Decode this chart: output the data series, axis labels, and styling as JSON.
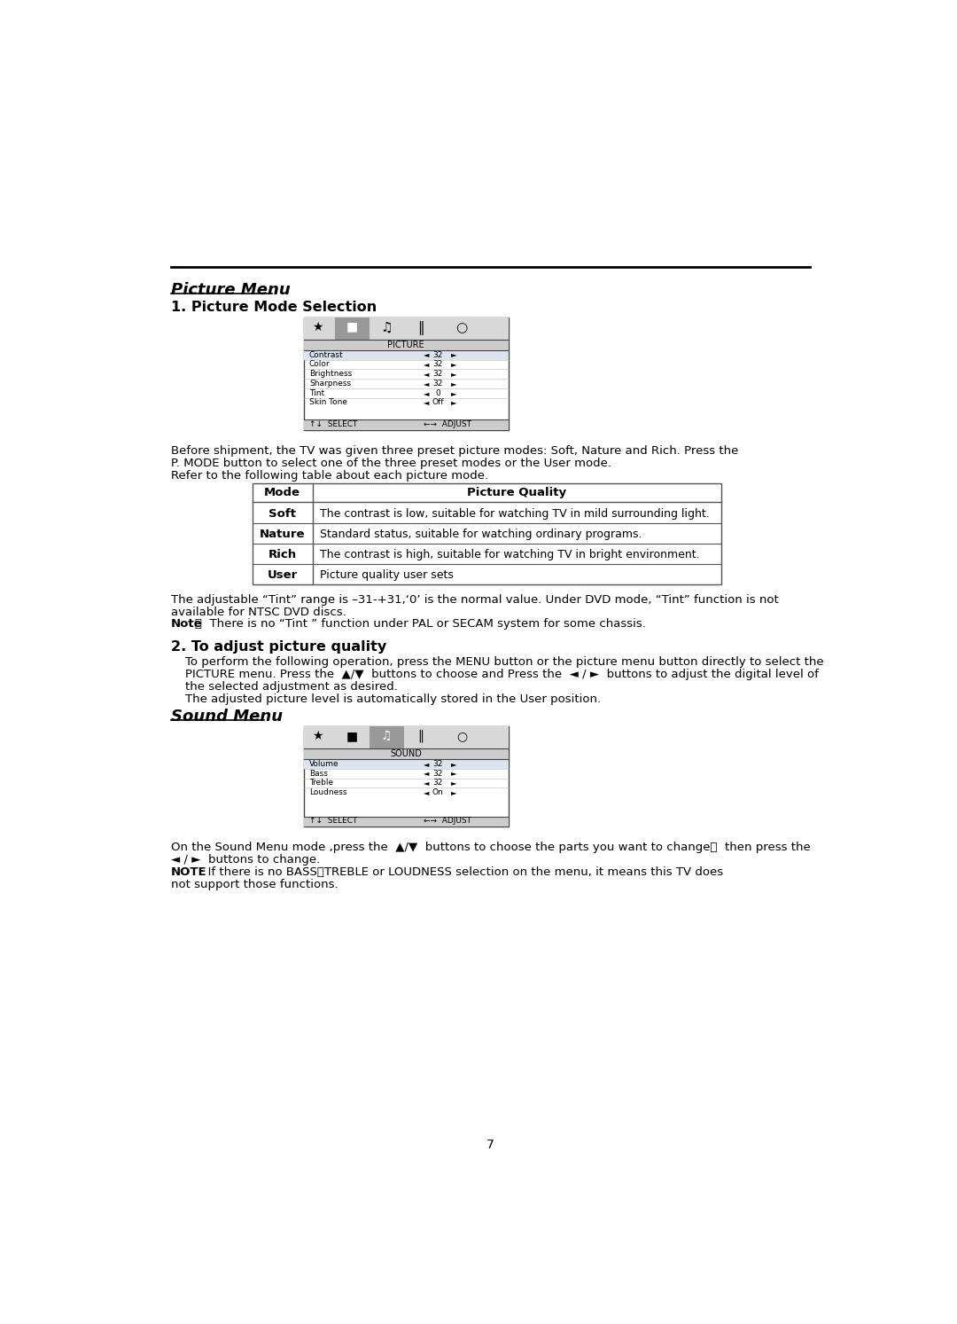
{
  "page_bg": "#ffffff",
  "picture_menu_title": "Picture Menu",
  "section1_title": "1. Picture Mode Selection",
  "picture_menu_items": [
    [
      "Contrast",
      "32"
    ],
    [
      "Color",
      "32"
    ],
    [
      "Brightness",
      "32"
    ],
    [
      "Sharpness",
      "32"
    ],
    [
      "Tint",
      "0"
    ],
    [
      "Skin Tone",
      "Off"
    ]
  ],
  "picture_menu_label": "PICTURE",
  "para1_line1": "Before shipment, the TV was given three preset picture modes: Soft, Nature and Rich. Press the",
  "para1_line2": "P. MODE button to select one of the three preset modes or the User mode.",
  "para1_line3": "Refer to the following table about each picture mode.",
  "table_headers": [
    "Mode",
    "Picture Quality"
  ],
  "table_rows": [
    [
      "Soft",
      "The contrast is low, suitable for watching TV in mild surrounding light."
    ],
    [
      "Nature",
      "Standard status, suitable for watching ordinary programs."
    ],
    [
      "Rich",
      "The contrast is high, suitable for watching TV in bright environment."
    ],
    [
      "User",
      "Picture quality user sets"
    ]
  ],
  "para2_line1": "The adjustable “Tint” range is –31-+31,‘0’ is the normal value. Under DVD mode, “Tint” function is not",
  "para2_line2": "available for NTSC DVD discs.",
  "section2_title": "2. To adjust picture quality",
  "section2_para1": "To perform the following operation, press the MENU button or the picture menu button directly to select the",
  "section2_para2": "PICTURE menu. Press the  ▲/▼  buttons to choose and Press the  ◄ / ►  buttons to adjust the digital level of",
  "section2_para3": "the selected adjustment as desired.",
  "section2_para4": "The adjusted picture level is automatically stored in the User position.",
  "sound_menu_title": "Sound Menu",
  "sound_menu_items": [
    [
      "Volume",
      "32"
    ],
    [
      "Bass",
      "32"
    ],
    [
      "Treble",
      "32"
    ],
    [
      "Loudness",
      "On"
    ]
  ],
  "sound_menu_label": "SOUND",
  "sound_para1": "On the Sound Menu mode ,press the  ▲/▼  buttons to choose the parts you want to change，  then press the",
  "sound_para2": "◄ / ►  buttons to change.",
  "sound_note1": "NOTE: If there is no BASS、TREBLE or LOUDNESS selection on the menu, it means this TV does",
  "sound_note2": "not support those functions.",
  "page_number": "7"
}
